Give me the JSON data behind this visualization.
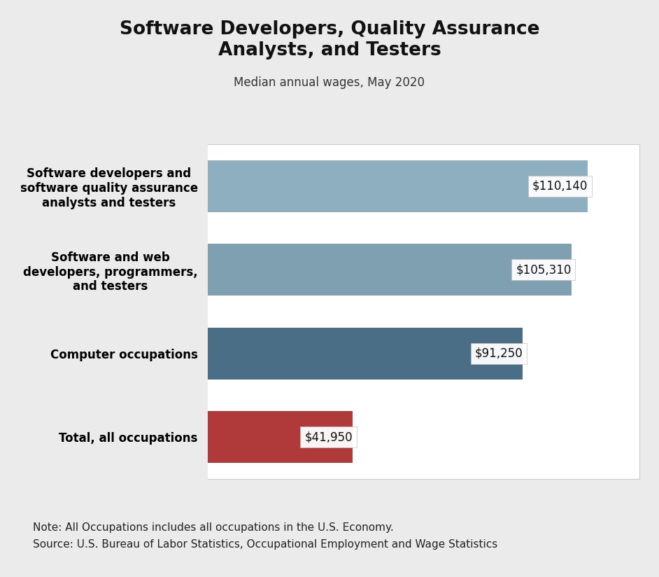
{
  "title": "Software Developers, Quality Assurance\nAnalysts, and Testers",
  "subtitle": "Median annual wages, May 2020",
  "categories": [
    "Total, all occupations",
    "Computer occupations",
    "Software and web\ndevelopers, programmers,\nand testers",
    "Software developers and\nsoftware quality assurance\nanalysts and testers"
  ],
  "values": [
    41950,
    91250,
    105310,
    110140
  ],
  "labels": [
    "$41,950",
    "$91,250",
    "$105,310",
    "$110,140"
  ],
  "bar_colors": [
    "#b03a3a",
    "#4a6e85",
    "#7fa0b0",
    "#8dafc0"
  ],
  "xlim": [
    0,
    125000
  ],
  "note_line1": "Note: All Occupations includes all occupations in the U.S. Economy.",
  "note_line2": "Source: U.S. Bureau of Labor Statistics, Occupational Employment and Wage Statistics",
  "background_color": "#ebebeb",
  "plot_bg_color": "#ffffff",
  "title_fontsize": 19,
  "subtitle_fontsize": 12,
  "label_fontsize": 12,
  "ytick_fontsize": 12,
  "note_fontsize": 11,
  "grid_color": "#cccccc",
  "xticks": [
    0,
    20000,
    40000,
    60000,
    80000,
    100000,
    120000
  ]
}
